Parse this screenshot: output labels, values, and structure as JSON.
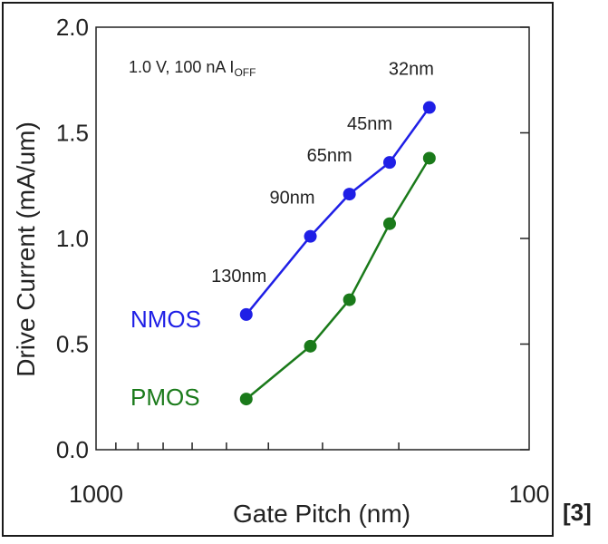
{
  "chart_data": {
    "type": "line",
    "annotation": "1.0 V, 100 nA I",
    "annotation_sub": "OFF",
    "xlabel": "Gate Pitch (nm)",
    "ylabel": "Drive Current  (mA/um)",
    "x_scale": "log",
    "x_reversed": true,
    "xlim": [
      1000,
      100
    ],
    "x_ticks": [
      "1000",
      "100"
    ],
    "ylim": [
      0.0,
      2.0
    ],
    "y_ticks": [
      "0.0",
      "0.5",
      "1.0",
      "1.5",
      "2.0"
    ],
    "grid": false,
    "legend": "inline labels",
    "x": [
      450,
      320,
      260,
      210,
      170
    ],
    "nodes": [
      "130nm",
      "90nm",
      "65nm",
      "45nm",
      "32nm"
    ],
    "series": [
      {
        "name": "NMOS",
        "color": "#1f1fe6",
        "values": [
          0.64,
          1.01,
          1.21,
          1.36,
          1.62
        ]
      },
      {
        "name": "PMOS",
        "color": "#1a7a1a",
        "values": [
          0.24,
          0.49,
          0.71,
          1.07,
          1.38
        ]
      }
    ]
  },
  "footer": {
    "reference": "[3]"
  }
}
